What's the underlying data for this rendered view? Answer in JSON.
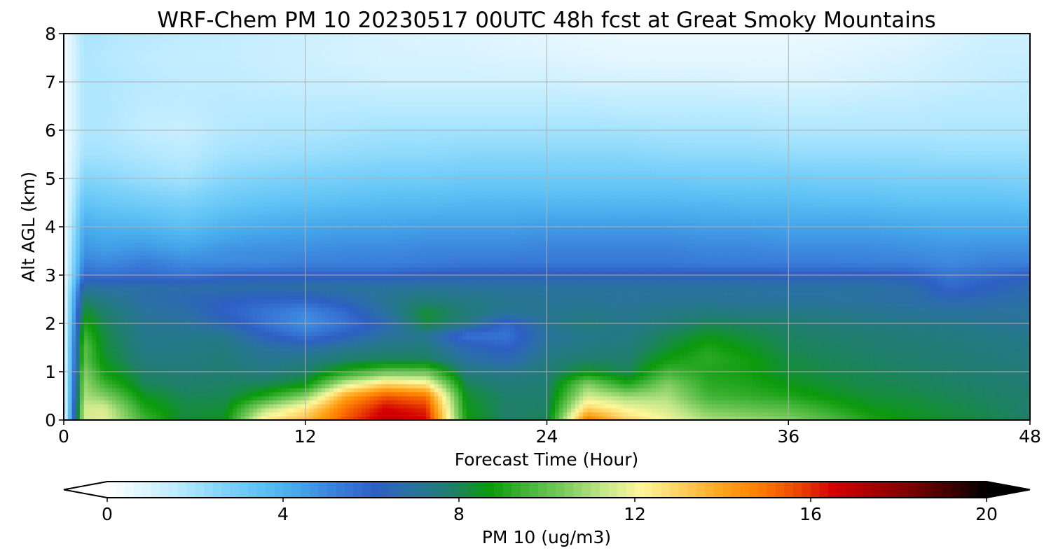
{
  "chart_data": {
    "type": "heatmap",
    "title": "WRF-Chem PM 10  20230517 00UTC 48h fcst at Great Smoky Mountains",
    "xlabel": "Forecast Time (Hour)",
    "ylabel": "Alt AGL (km)",
    "xlim": [
      0,
      48
    ],
    "ylim": [
      0,
      8
    ],
    "x_ticks": [
      0,
      12,
      24,
      36,
      48
    ],
    "y_ticks": [
      0,
      1,
      2,
      3,
      4,
      5,
      6,
      7,
      8
    ],
    "grid": true,
    "x": [
      0,
      1,
      2,
      4,
      6,
      8,
      10,
      12,
      14,
      16,
      18,
      20,
      22,
      24,
      26,
      28,
      30,
      32,
      34,
      36,
      38,
      40,
      42,
      44,
      46,
      48
    ],
    "y": [
      0,
      0.25,
      0.5,
      0.75,
      1,
      1.25,
      1.5,
      1.75,
      2,
      2.25,
      2.5,
      2.75,
      3,
      3.25,
      3.5,
      4,
      4.5,
      5,
      5.5,
      6,
      6.5,
      7,
      7.5,
      8
    ],
    "z": [
      [
        0.3,
        11.5,
        11.8,
        9.5,
        8.2,
        8.5,
        12.5,
        13.5,
        15.5,
        17.0,
        16.5,
        8.8,
        7.8,
        8.0,
        15.0,
        13.0,
        12.0,
        11.0,
        10.8,
        10.5,
        9.8,
        9.0,
        8.6,
        8.3,
        8.1,
        7.8
      ],
      [
        0.3,
        11.5,
        11.6,
        9.0,
        8.2,
        8.3,
        11.0,
        12.5,
        15.0,
        16.5,
        16.0,
        8.6,
        7.8,
        7.9,
        13.0,
        12.0,
        11.5,
        10.3,
        10.0,
        9.8,
        9.2,
        8.6,
        8.4,
        8.2,
        8.0,
        7.8
      ],
      [
        0.3,
        11.0,
        10.5,
        8.5,
        8.0,
        8.0,
        9.0,
        10.5,
        14.0,
        15.5,
        15.0,
        8.4,
        7.8,
        7.8,
        11.5,
        10.8,
        11.0,
        9.5,
        9.3,
        9.0,
        8.6,
        8.3,
        8.2,
        8.0,
        7.9,
        7.8
      ],
      [
        0.3,
        10.8,
        9.5,
        8.0,
        7.8,
        7.9,
        8.0,
        8.5,
        11.5,
        13.0,
        12.5,
        8.0,
        7.6,
        7.7,
        10.5,
        9.0,
        10.5,
        9.2,
        9.0,
        8.6,
        8.3,
        8.1,
        8.0,
        7.9,
        7.8,
        7.7
      ],
      [
        0.3,
        10.5,
        8.8,
        7.8,
        7.6,
        7.7,
        7.5,
        7.8,
        9.0,
        10.0,
        10.0,
        7.5,
        7.3,
        7.6,
        8.5,
        8.0,
        9.5,
        9.0,
        8.8,
        8.3,
        8.1,
        8.0,
        7.9,
        7.8,
        7.7,
        7.6
      ],
      [
        0.3,
        10.0,
        8.5,
        7.5,
        7.5,
        7.6,
        7.2,
        7.4,
        7.8,
        8.0,
        8.0,
        7.0,
        6.5,
        7.5,
        7.8,
        7.8,
        8.8,
        9.2,
        8.8,
        8.2,
        8.0,
        7.9,
        7.8,
        7.7,
        7.6,
        7.5
      ],
      [
        0.3,
        10.0,
        8.3,
        7.4,
        7.4,
        7.5,
        7.0,
        6.8,
        7.2,
        7.5,
        7.6,
        6.5,
        6.0,
        7.2,
        7.5,
        7.6,
        8.3,
        9.0,
        8.5,
        8.0,
        7.9,
        7.8,
        7.7,
        7.6,
        7.5,
        7.4
      ],
      [
        0.3,
        9.5,
        8.2,
        7.3,
        7.3,
        7.3,
        6.2,
        5.5,
        6.2,
        7.0,
        7.2,
        5.5,
        5.5,
        7.0,
        7.3,
        7.4,
        8.0,
        8.5,
        8.2,
        7.9,
        7.8,
        7.7,
        7.6,
        7.5,
        7.4,
        7.3
      ],
      [
        0.3,
        9.0,
        8.0,
        7.2,
        7.1,
        6.5,
        5.5,
        4.8,
        5.5,
        6.5,
        8.2,
        7.5,
        5.8,
        7.2,
        7.6,
        7.3,
        7.6,
        8.0,
        7.9,
        7.8,
        7.6,
        7.5,
        7.4,
        7.3,
        7.2,
        7.1
      ],
      [
        0.3,
        8.4,
        7.8,
        7.0,
        6.8,
        6.0,
        5.5,
        5.0,
        5.8,
        7.0,
        8.3,
        7.6,
        7.2,
        7.2,
        7.3,
        7.2,
        7.4,
        7.5,
        7.4,
        7.4,
        7.3,
        7.2,
        7.1,
        7.0,
        7.0,
        7.0
      ],
      [
        0.3,
        7.8,
        7.4,
        6.8,
        6.5,
        6.2,
        6.0,
        6.0,
        6.5,
        7.2,
        7.6,
        7.4,
        7.2,
        7.1,
        7.1,
        7.0,
        7.1,
        7.1,
        7.0,
        7.0,
        7.0,
        6.9,
        6.8,
        6.5,
        6.6,
        6.8
      ],
      [
        0.3,
        7.0,
        6.9,
        6.8,
        6.8,
        6.8,
        6.8,
        6.9,
        7.0,
        7.0,
        7.1,
        7.0,
        7.0,
        7.0,
        7.0,
        7.0,
        7.0,
        7.0,
        7.0,
        6.9,
        6.9,
        6.9,
        6.8,
        5.8,
        6.2,
        6.7
      ],
      [
        0.3,
        5.8,
        5.6,
        5.8,
        5.5,
        5.9,
        6.0,
        6.0,
        6.0,
        6.0,
        6.2,
        6.3,
        6.3,
        6.3,
        6.3,
        6.3,
        6.3,
        6.3,
        6.3,
        6.2,
        6.2,
        6.2,
        6.1,
        5.5,
        5.8,
        6.1
      ],
      [
        0.3,
        5.2,
        5.0,
        5.3,
        5.0,
        5.0,
        5.0,
        5.2,
        5.2,
        5.2,
        5.3,
        5.4,
        5.4,
        5.4,
        5.4,
        5.4,
        5.4,
        5.3,
        5.3,
        5.3,
        5.3,
        5.2,
        5.2,
        5.0,
        5.2,
        5.2
      ],
      [
        0.3,
        4.8,
        4.6,
        4.8,
        4.5,
        4.8,
        4.9,
        4.9,
        5.0,
        5.0,
        5.1,
        5.1,
        5.1,
        5.2,
        5.2,
        5.2,
        5.2,
        5.1,
        5.1,
        5.0,
        5.0,
        5.0,
        4.9,
        4.8,
        4.9,
        4.9
      ],
      [
        0.3,
        4.2,
        4.0,
        3.9,
        3.6,
        4.0,
        4.2,
        4.3,
        4.4,
        4.4,
        4.5,
        4.5,
        4.5,
        4.6,
        4.6,
        4.6,
        4.6,
        4.5,
        4.5,
        4.4,
        4.4,
        4.4,
        4.3,
        4.2,
        4.2,
        4.2
      ],
      [
        0.3,
        3.4,
        3.2,
        3.0,
        2.8,
        3.2,
        3.4,
        3.5,
        3.6,
        3.7,
        3.7,
        3.8,
        3.8,
        3.8,
        3.8,
        3.8,
        3.8,
        3.8,
        3.7,
        3.7,
        3.6,
        3.6,
        3.5,
        3.5,
        3.5,
        3.4
      ],
      [
        0.3,
        2.6,
        2.5,
        2.2,
        2.0,
        2.5,
        2.7,
        2.8,
        2.9,
        3.0,
        3.0,
        3.1,
        3.1,
        3.1,
        3.1,
        3.1,
        3.1,
        3.0,
        3.0,
        3.0,
        2.9,
        2.9,
        2.8,
        2.8,
        2.8,
        2.7
      ],
      [
        0.3,
        2.0,
        2.0,
        1.8,
        1.6,
        2.0,
        2.1,
        2.2,
        2.3,
        2.4,
        2.4,
        2.5,
        2.5,
        2.5,
        2.5,
        2.5,
        2.4,
        2.4,
        2.4,
        2.3,
        2.3,
        2.3,
        2.3,
        2.2,
        2.2,
        2.2
      ],
      [
        0.3,
        1.8,
        1.8,
        1.4,
        1.3,
        1.7,
        1.8,
        1.8,
        1.9,
        2.0,
        2.0,
        2.0,
        2.0,
        2.0,
        2.0,
        2.0,
        1.9,
        1.9,
        1.9,
        1.8,
        1.8,
        1.8,
        1.8,
        1.8,
        1.8,
        1.8
      ],
      [
        0.3,
        1.8,
        1.8,
        1.5,
        1.5,
        1.6,
        1.6,
        1.6,
        1.6,
        1.6,
        1.6,
        1.6,
        1.6,
        1.6,
        1.6,
        1.5,
        1.5,
        1.5,
        1.5,
        1.4,
        1.4,
        1.5,
        1.5,
        1.6,
        1.6,
        1.6
      ],
      [
        0.3,
        1.8,
        1.8,
        1.6,
        1.5,
        1.5,
        1.4,
        1.3,
        1.3,
        1.2,
        1.2,
        1.2,
        1.2,
        1.2,
        1.1,
        1.1,
        1.1,
        1.1,
        1.0,
        1.0,
        1.0,
        1.1,
        1.2,
        1.3,
        1.4,
        1.5
      ],
      [
        0.3,
        1.8,
        1.7,
        1.5,
        1.4,
        1.4,
        1.3,
        1.2,
        1.1,
        1.0,
        1.0,
        1.0,
        0.9,
        0.9,
        0.8,
        0.7,
        0.7,
        0.7,
        0.7,
        0.7,
        0.8,
        0.9,
        1.0,
        1.2,
        1.3,
        1.3
      ],
      [
        0.3,
        1.9,
        1.8,
        1.6,
        1.5,
        1.4,
        1.3,
        1.2,
        1.1,
        1.0,
        0.9,
        0.9,
        0.8,
        0.7,
        0.6,
        0.5,
        0.5,
        0.5,
        0.5,
        0.5,
        0.6,
        0.7,
        0.8,
        1.0,
        1.2,
        1.2
      ]
    ],
    "colorbar": {
      "label": "PM 10  (ug/m3)",
      "ticks": [
        0,
        4,
        8,
        12,
        16,
        20
      ],
      "range": [
        0,
        20
      ],
      "extend": "both",
      "palette": [
        "#ffffff",
        "#def5ff",
        "#b3e8ff",
        "#82d4fa",
        "#5ec2f5",
        "#45a6ea",
        "#3a7fda",
        "#2e5fc4",
        "#2a72a0",
        "#1e7f6a",
        "#0a9a0a",
        "#45b53a",
        "#80cc60",
        "#c4e88a",
        "#fff79a",
        "#ffd060",
        "#ffa820",
        "#ff8000",
        "#ec4a00",
        "#d40000",
        "#a80000",
        "#7a0000",
        "#420000",
        "#000000"
      ]
    }
  }
}
